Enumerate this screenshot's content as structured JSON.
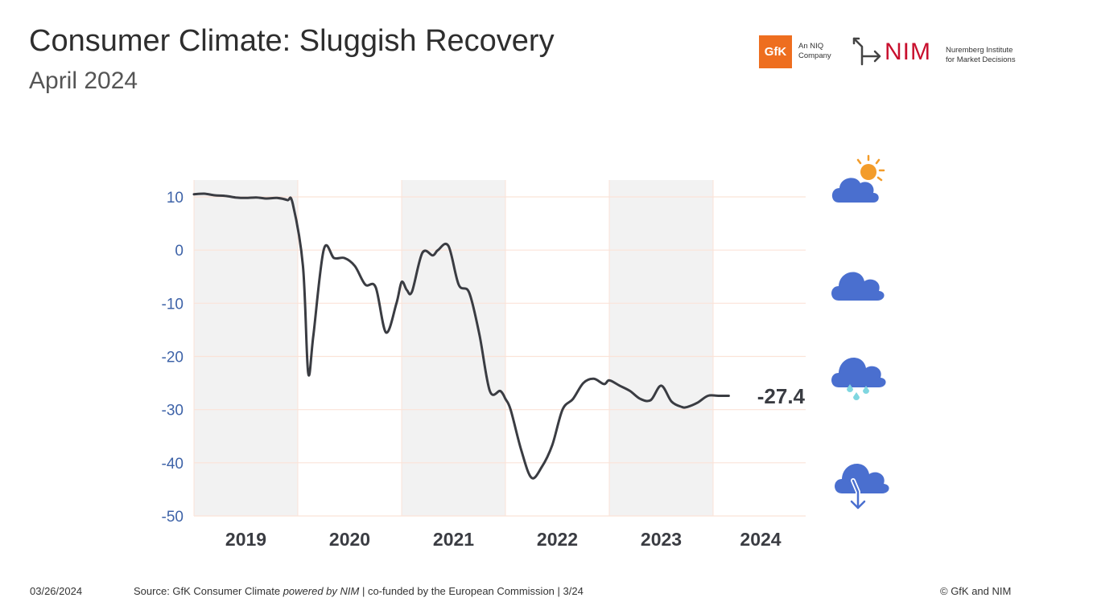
{
  "header": {
    "title": "Consumer Climate: Sluggish Recovery",
    "subtitle": "April 2024"
  },
  "logos": {
    "gfk": "GfK",
    "niq_line1": "An NIQ",
    "niq_line2": "Company",
    "nim": "NIM",
    "nim_line1": "Nuremberg Institute",
    "nim_line2": "for Market Decisions"
  },
  "footer": {
    "date": "03/26/2024",
    "source_prefix": "Source: GfK Consumer Climate ",
    "source_powered": "powered by NIM",
    "source_suffix": " | co-funded by the European Commission | 3/24",
    "copyright": "© GfK and NIM"
  },
  "weather_icons": [
    "sun-cloud-icon",
    "cloud-icon",
    "rain-cloud-icon",
    "cloud-down-arrow-icon"
  ],
  "colors": {
    "line": "#3a3c42",
    "tick": "#3e63a8",
    "shade": "#f2f2f2",
    "grid": "#fbe3d8",
    "cloud": "#4a6fcf",
    "sun": "#f39c2a",
    "drops": "#7fd6e0"
  },
  "chart_data": {
    "type": "line",
    "title": "",
    "xlabel": "",
    "ylabel": "",
    "ylim": [
      -50,
      10
    ],
    "yticks": [
      10,
      0,
      -10,
      -20,
      -30,
      -40,
      -50
    ],
    "year_labels": [
      "2019",
      "2020",
      "2021",
      "2022",
      "2023",
      "2024"
    ],
    "shaded_years": [
      "2019",
      "2021",
      "2023"
    ],
    "series": [
      {
        "name": "Consumer Climate",
        "x": [
          2019.0,
          2019.1,
          2019.2,
          2019.3,
          2019.4,
          2019.5,
          2019.6,
          2019.7,
          2019.8,
          2019.9,
          2019.95,
          2020.05,
          2020.1,
          2020.15,
          2020.25,
          2020.35,
          2020.45,
          2020.55,
          2020.65,
          2020.75,
          2020.85,
          2020.95,
          2021.0,
          2021.05,
          2021.1,
          2021.2,
          2021.3,
          2021.35,
          2021.45,
          2021.55,
          2021.65,
          2021.75,
          2021.85,
          2021.95,
          2022.0,
          2022.05,
          2022.15,
          2022.25,
          2022.35,
          2022.45,
          2022.55,
          2022.65,
          2022.75,
          2022.85,
          2022.95,
          2023.0,
          2023.1,
          2023.2,
          2023.3,
          2023.4,
          2023.5,
          2023.6,
          2023.7,
          2023.75,
          2023.85,
          2023.95,
          2024.05,
          2024.15
        ],
        "y": [
          10.5,
          10.6,
          10.3,
          10.2,
          9.9,
          9.8,
          9.9,
          9.7,
          9.8,
          9.4,
          8.8,
          -3.0,
          -23.1,
          -16.0,
          0.1,
          -1.5,
          -1.5,
          -3.0,
          -6.5,
          -7.0,
          -15.5,
          -10.0,
          -6.0,
          -7.5,
          -7.8,
          -0.5,
          -1.0,
          0.0,
          0.8,
          -6.5,
          -8.0,
          -16.0,
          -26.5,
          -26.5,
          -28.0,
          -30.0,
          -37.5,
          -42.8,
          -40.8,
          -36.7,
          -30.0,
          -28.0,
          -25.0,
          -24.2,
          -25.2,
          -24.5,
          -25.5,
          -26.5,
          -28.0,
          -28.2,
          -25.5,
          -28.5,
          -29.5,
          -29.5,
          -28.7,
          -27.4,
          -27.4,
          -27.4
        ],
        "last_value_label": "-27.4"
      }
    ]
  }
}
